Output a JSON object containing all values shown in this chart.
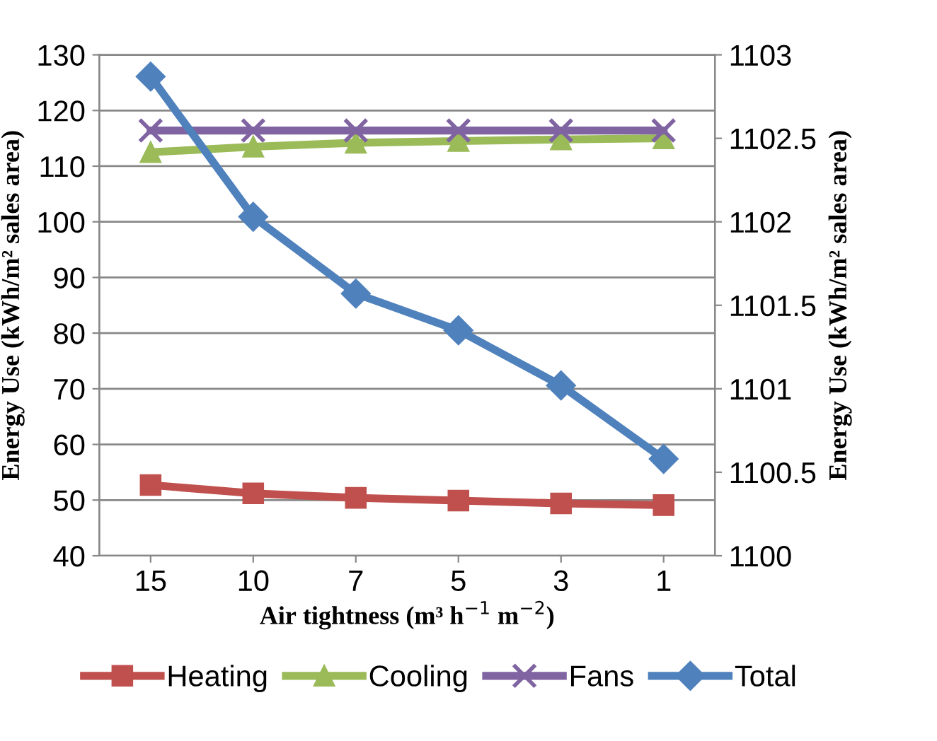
{
  "chart_data": {
    "type": "line",
    "categories": [
      "15",
      "10",
      "7",
      "5",
      "3",
      "1"
    ],
    "xlabel": "Air tightness (m³ h$^{−1}$ m$^{−2}$)",
    "ylabel": "Energy Use (kWh/m² sales area)",
    "y2label": "Energy Use (kWh/m² sales area)",
    "series": [
      {
        "name": "Heating",
        "color": "#c0504d",
        "marker": "square",
        "values": [
          52.7,
          51.2,
          50.4,
          49.9,
          49.4,
          49.1
        ]
      },
      {
        "name": "Cooling",
        "color": "#9bbb59",
        "marker": "triangle",
        "values": [
          112.5,
          113.5,
          114.2,
          114.5,
          114.8,
          115.0
        ]
      },
      {
        "name": "Fans",
        "color": "#8064a2",
        "marker": "cross",
        "values": [
          116.4,
          116.4,
          116.4,
          116.4,
          116.4,
          116.4
        ]
      },
      {
        "name": "Total",
        "color": "#4f81bd",
        "marker": "diamond",
        "axis": "y2",
        "values": [
          1102.87,
          1102.03,
          1101.57,
          1101.35,
          1101.02,
          1100.58
        ]
      }
    ],
    "ylim": [
      40,
      130
    ],
    "yticks": [
      40,
      50,
      60,
      70,
      80,
      90,
      100,
      110,
      120,
      130
    ],
    "y2lim": [
      1100,
      1103
    ],
    "y2ticks": [
      1100,
      1100.5,
      1101,
      1101.5,
      1102,
      1102.5,
      1103
    ],
    "grid": "y",
    "legend": "bottom",
    "line_style": "solid"
  }
}
